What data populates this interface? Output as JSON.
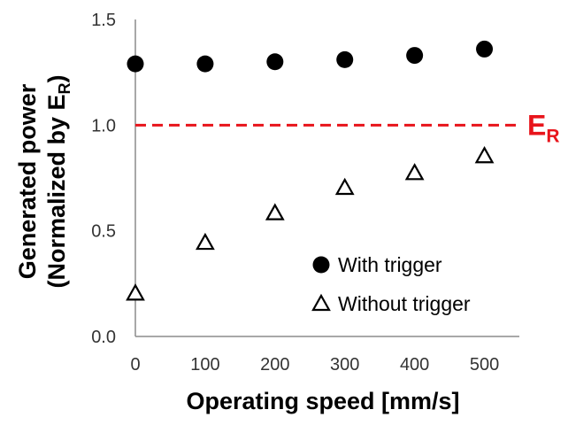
{
  "chart_data": {
    "type": "scatter",
    "xlabel": "Operating speed [mm/s]",
    "ylabel_line1": "Generated power",
    "ylabel_line2_prefix": "(Normalized by E",
    "ylabel_line2_sub": "R",
    "ylabel_line2_suffix": ")",
    "xlim": [
      0,
      550
    ],
    "ylim": [
      0,
      1.5
    ],
    "xticks": [
      0,
      100,
      200,
      300,
      400,
      500
    ],
    "xtick_labels": [
      "0",
      "100",
      "200",
      "300",
      "400",
      "500"
    ],
    "yticks": [
      0,
      0.5,
      1.0,
      1.5
    ],
    "ytick_labels": [
      "0.0",
      "0.5",
      "1.0",
      "1.5"
    ],
    "grid": false,
    "legend_position": "lower-right",
    "reference_line": {
      "y": 1.0,
      "label_main": "E",
      "label_sub": "R",
      "color": "#e8141b",
      "style": "dashed"
    },
    "series": [
      {
        "name": "With trigger",
        "marker": "filled-circle",
        "color": "#000000",
        "x": [
          0,
          100,
          200,
          300,
          400,
          500
        ],
        "y": [
          1.29,
          1.29,
          1.3,
          1.31,
          1.33,
          1.36
        ]
      },
      {
        "name": "Without trigger",
        "marker": "open-triangle",
        "color": "#000000",
        "x": [
          0,
          100,
          200,
          300,
          400,
          500
        ],
        "y": [
          0.2,
          0.44,
          0.58,
          0.7,
          0.77,
          0.85
        ]
      }
    ]
  }
}
